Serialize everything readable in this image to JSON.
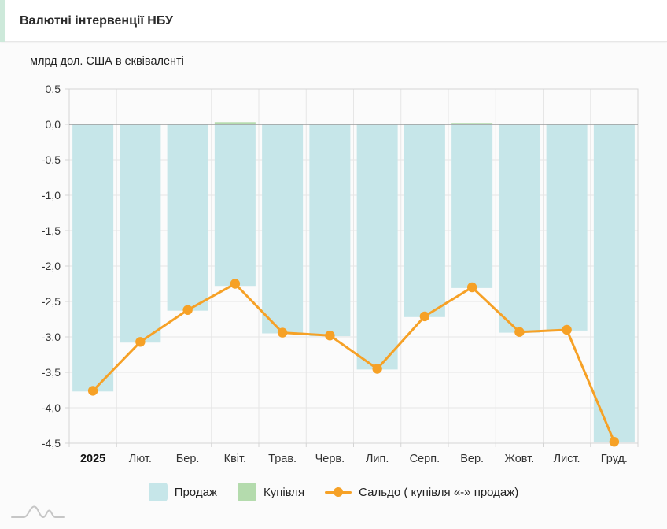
{
  "header": {
    "title": "Валютні інтервенції НБУ"
  },
  "chart_data": {
    "type": "bar",
    "title": "Валютні інтервенції НБУ",
    "unit_label": "млрд дол. США в еквіваленті",
    "categories": [
      "2025",
      "Лют.",
      "Бер.",
      "Квіт.",
      "Трав.",
      "Черв.",
      "Лип.",
      "Серп.",
      "Вер.",
      "Жовт.",
      "Лист.",
      "Груд."
    ],
    "series": [
      {
        "name": "Продаж",
        "type": "bar",
        "color": "#c6e6e9",
        "values": [
          -3.77,
          -3.08,
          -2.63,
          -2.28,
          -2.95,
          -2.99,
          -3.46,
          -2.72,
          -2.31,
          -2.94,
          -2.91,
          -4.49
        ]
      },
      {
        "name": "Купівля",
        "type": "bar",
        "color": "#b4dbad",
        "values": [
          0.01,
          0.01,
          0.01,
          0.03,
          0.01,
          0.01,
          0.01,
          0.01,
          0.02,
          0.01,
          0.01,
          0.01
        ]
      },
      {
        "name": "Сальдо ( купівля «-» продаж)",
        "type": "line",
        "color": "#f6a126",
        "values": [
          -3.76,
          -3.07,
          -2.62,
          -2.25,
          -2.94,
          -2.98,
          -3.45,
          -2.71,
          -2.3,
          -2.93,
          -2.9,
          -4.48
        ]
      }
    ],
    "ylim": [
      0.5,
      -4.5
    ],
    "y_ticks": [
      "0,5",
      "0,0",
      "-0,5",
      "-1,0",
      "-1,5",
      "-2,0",
      "-2,5",
      "-3,0",
      "-3,5",
      "-4,0",
      "-4,5"
    ],
    "grid": true,
    "legend_position": "bottom"
  },
  "colors": {
    "accent_border": "#cde9da",
    "grid": "#e6e6e6",
    "zero_line": "#9c9c9c",
    "plot_border": "#d4d4d4",
    "tick_text": "#333333",
    "logo": "#c6c6c6"
  }
}
